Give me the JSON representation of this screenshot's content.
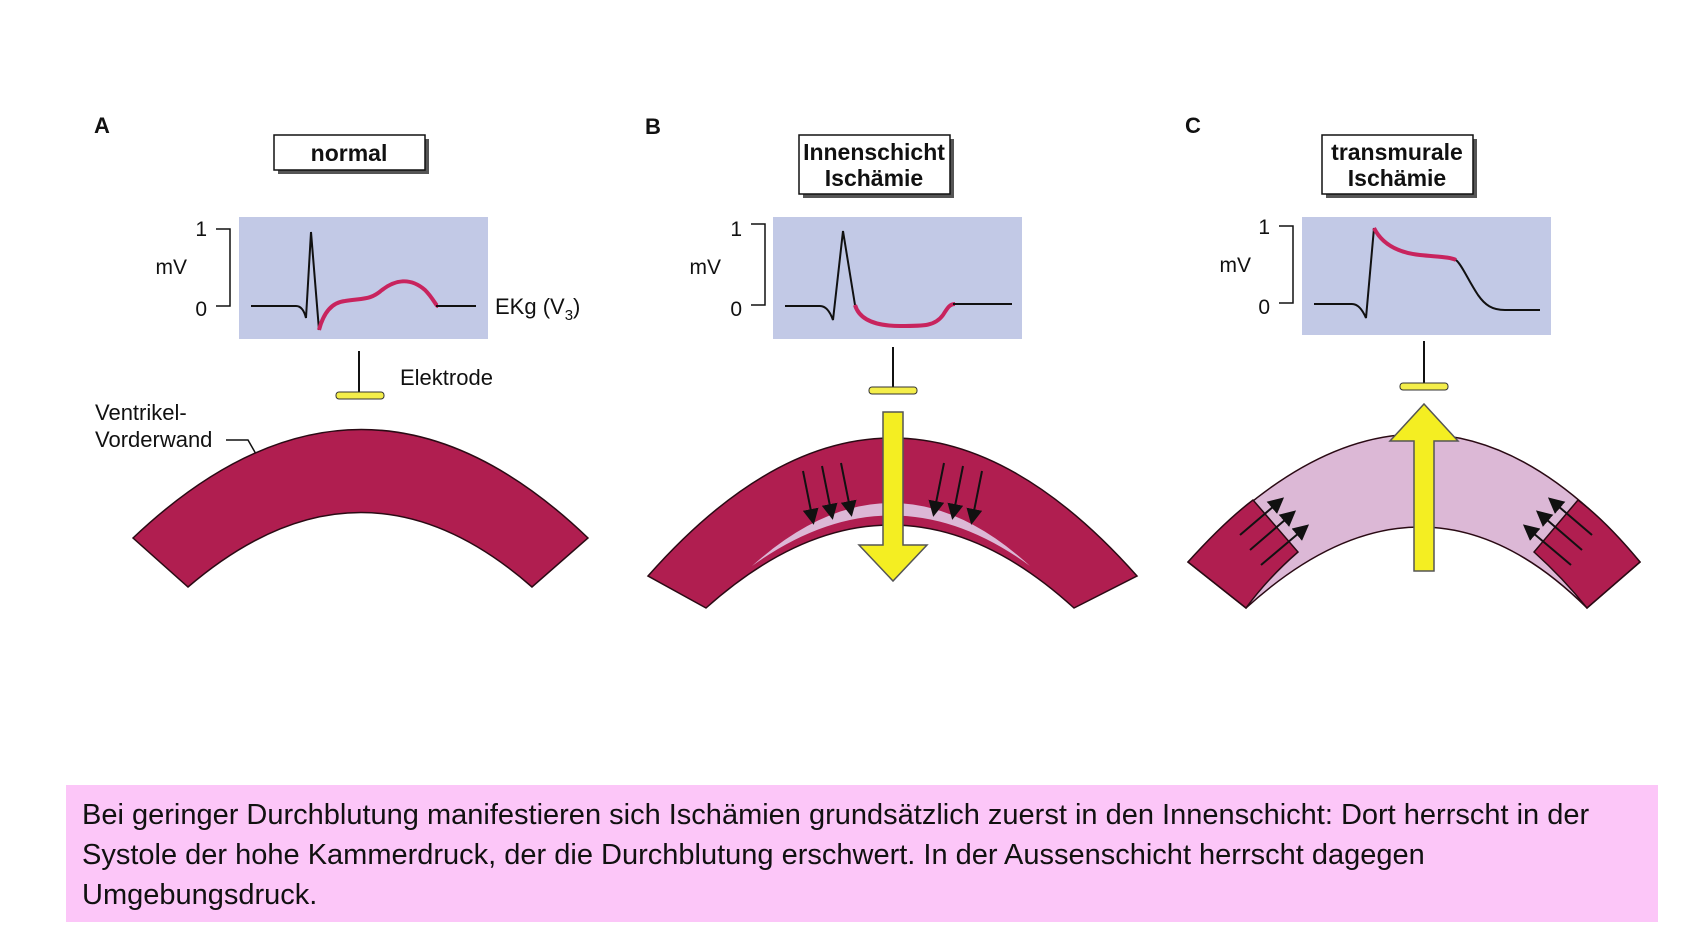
{
  "panels": [
    {
      "letter": "A",
      "title_lines": [
        "normal"
      ],
      "axis": {
        "y_top": "1",
        "y_unit": "mV",
        "y_bottom": "0"
      },
      "ekg_label": "EKg (V",
      "ekg_label_sub": "3",
      "ekg_label_end": ")",
      "electrode_label": "Elektrode",
      "wall_label_lines": [
        "Ventrikel-",
        "Vorderwand"
      ]
    },
    {
      "letter": "B",
      "title_lines": [
        "Innenschicht",
        "Ischämie"
      ],
      "axis": {
        "y_top": "1",
        "y_unit": "mV",
        "y_bottom": "0"
      }
    },
    {
      "letter": "C",
      "title_lines": [
        "transmurale",
        "Ischämie"
      ],
      "axis": {
        "y_top": "1",
        "y_unit": "mV",
        "y_bottom": "0"
      }
    }
  ],
  "caption": "Bei geringer Durchblutung manifestieren sich Ischämien grundsätzlich zuerst in den Innenschicht: Dort herrscht in der Systole der hohe Kammerdruck, der die Durchblutung erschwert. In der Aussenschicht herrscht dagegen Umgebungsdruck.",
  "colors": {
    "muscle": "#b01e50",
    "ischemic": "#dcb8d6",
    "ekg_box": "#c2c9e6",
    "st_trace": "#c8245e",
    "electrode": "#f4ee4a",
    "arrow": "#f4ee22",
    "caption_bg": "#fcc6f8"
  }
}
